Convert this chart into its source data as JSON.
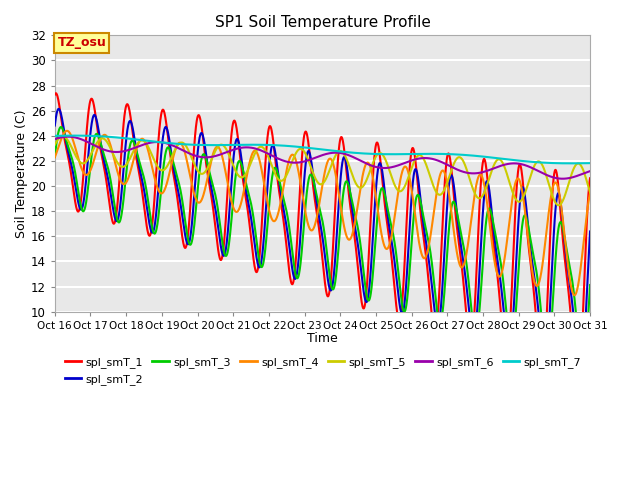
{
  "title": "SP1 Soil Temperature Profile",
  "xlabel": "Time",
  "ylabel": "Soil Temperature (C)",
  "ylim": [
    10,
    32
  ],
  "xlim": [
    0,
    15
  ],
  "xtick_labels": [
    "Oct 16",
    "Oct 17",
    "Oct 18",
    "Oct 19",
    "Oct 20",
    "Oct 21",
    "Oct 22",
    "Oct 23",
    "Oct 24",
    "Oct 25",
    "Oct 26",
    "Oct 27",
    "Oct 28",
    "Oct 29",
    "Oct 30",
    "Oct 31"
  ],
  "ytick_vals": [
    10,
    12,
    14,
    16,
    18,
    20,
    22,
    24,
    26,
    28,
    30,
    32
  ],
  "series_colors": {
    "spl_smT_1": "#ff0000",
    "spl_smT_2": "#0000cc",
    "spl_smT_3": "#00cc00",
    "spl_smT_4": "#ff8800",
    "spl_smT_5": "#cccc00",
    "spl_smT_6": "#9900aa",
    "spl_smT_7": "#00cccc"
  },
  "bg_color": "#e8e8e8",
  "grid_color": "#ffffff",
  "annotation_text": "TZ_osu",
  "annotation_bg": "#ffff99",
  "annotation_border": "#cc8800"
}
